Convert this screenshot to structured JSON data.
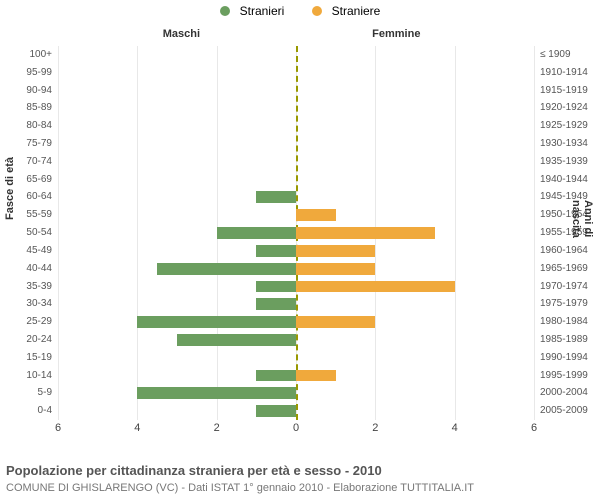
{
  "legend": {
    "male": {
      "label": "Stranieri",
      "color": "#6b9e5f"
    },
    "female": {
      "label": "Straniere",
      "color": "#f0a93c"
    }
  },
  "section_labels": {
    "male": "Maschi",
    "female": "Femmine"
  },
  "axis_titles": {
    "left": "Fasce di età",
    "right": "Anni di nascita"
  },
  "chart": {
    "type": "population-pyramid",
    "xlim": 6,
    "xticks": [
      6,
      4,
      2,
      0,
      2,
      4,
      6
    ],
    "grid_color": "#e8e8e8",
    "centerline_color": "#999900",
    "male_color": "#6b9e5f",
    "female_color": "#f0a93c",
    "background_color": "#ffffff",
    "label_fontsize": 10,
    "rows": [
      {
        "age": "100+",
        "year": "≤ 1909",
        "m": 0,
        "f": 0
      },
      {
        "age": "95-99",
        "year": "1910-1914",
        "m": 0,
        "f": 0
      },
      {
        "age": "90-94",
        "year": "1915-1919",
        "m": 0,
        "f": 0
      },
      {
        "age": "85-89",
        "year": "1920-1924",
        "m": 0,
        "f": 0
      },
      {
        "age": "80-84",
        "year": "1925-1929",
        "m": 0,
        "f": 0
      },
      {
        "age": "75-79",
        "year": "1930-1934",
        "m": 0,
        "f": 0
      },
      {
        "age": "70-74",
        "year": "1935-1939",
        "m": 0,
        "f": 0
      },
      {
        "age": "65-69",
        "year": "1940-1944",
        "m": 0,
        "f": 0
      },
      {
        "age": "60-64",
        "year": "1945-1949",
        "m": 1,
        "f": 0
      },
      {
        "age": "55-59",
        "year": "1950-1954",
        "m": 0,
        "f": 1
      },
      {
        "age": "50-54",
        "year": "1955-1959",
        "m": 2,
        "f": 3.5
      },
      {
        "age": "45-49",
        "year": "1960-1964",
        "m": 1,
        "f": 2
      },
      {
        "age": "40-44",
        "year": "1965-1969",
        "m": 3.5,
        "f": 2
      },
      {
        "age": "35-39",
        "year": "1970-1974",
        "m": 1,
        "f": 4
      },
      {
        "age": "30-34",
        "year": "1975-1979",
        "m": 1,
        "f": 0
      },
      {
        "age": "25-29",
        "year": "1980-1984",
        "m": 4,
        "f": 2
      },
      {
        "age": "20-24",
        "year": "1985-1989",
        "m": 3,
        "f": 0
      },
      {
        "age": "15-19",
        "year": "1990-1994",
        "m": 0,
        "f": 0
      },
      {
        "age": "10-14",
        "year": "1995-1999",
        "m": 1,
        "f": 1
      },
      {
        "age": "5-9",
        "year": "2000-2004",
        "m": 4,
        "f": 0
      },
      {
        "age": "0-4",
        "year": "2005-2009",
        "m": 1,
        "f": 0
      }
    ]
  },
  "footer": {
    "title": "Popolazione per cittadinanza straniera per età e sesso - 2010",
    "subtitle": "COMUNE DI GHISLARENGO (VC) - Dati ISTAT 1° gennaio 2010 - Elaborazione TUTTITALIA.IT"
  }
}
